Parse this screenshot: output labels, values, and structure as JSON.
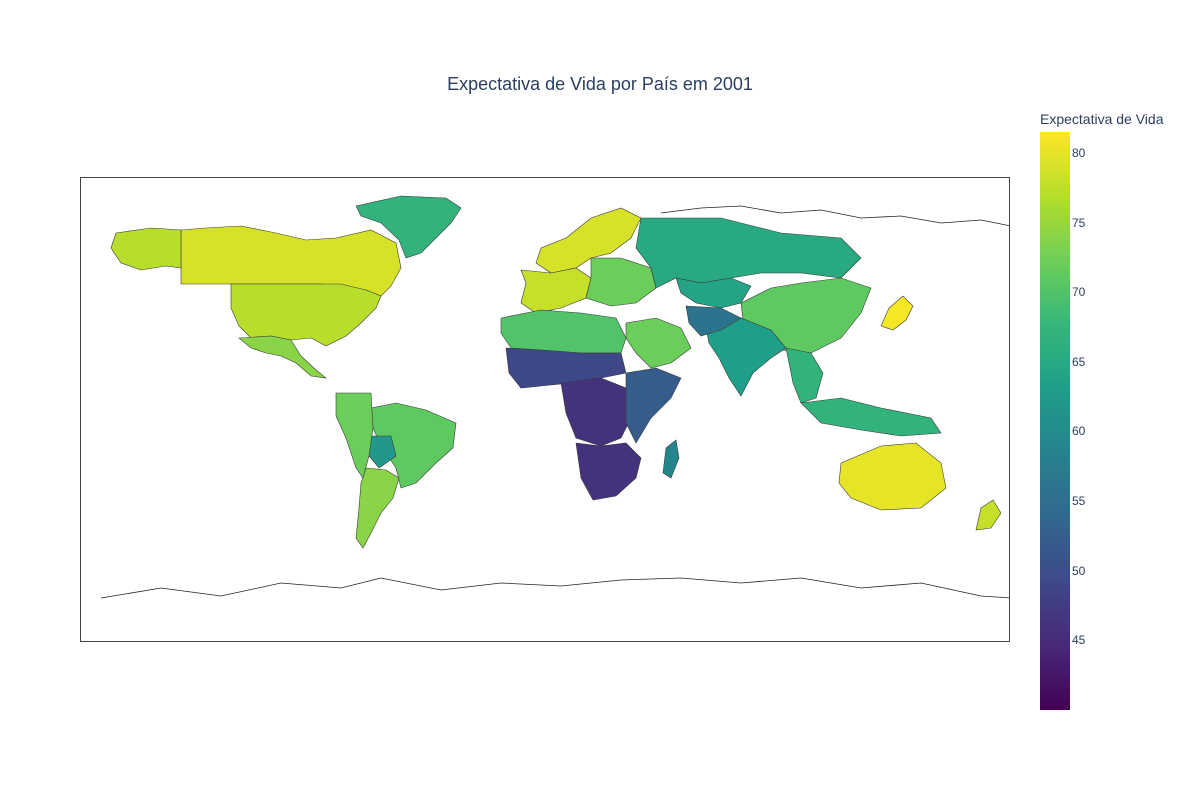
{
  "title": "Expectativa de Vida por País em 2001",
  "colorbar": {
    "title": "Expectativa de Vida",
    "ticks": [
      "80",
      "75",
      "70",
      "65",
      "60",
      "55",
      "50",
      "45"
    ],
    "tick_values": [
      80,
      75,
      70,
      65,
      60,
      55,
      50,
      45
    ],
    "min": 40,
    "max": 81.5,
    "colorscale": [
      "#440154",
      "#482878",
      "#3e4989",
      "#31688e",
      "#26828e",
      "#1f9e89",
      "#35b779",
      "#6ece58",
      "#b5de2b",
      "#fde725"
    ]
  },
  "chart_data": {
    "type": "choropleth",
    "title": "Expectativa de Vida por País em 2001",
    "colorbar_title": "Expectativa de Vida",
    "range": [
      40,
      81.5
    ],
    "regions": [
      {
        "name": "Canada",
        "value": 79
      },
      {
        "name": "United States",
        "value": 77
      },
      {
        "name": "Alaska",
        "value": 77
      },
      {
        "name": "Greenland",
        "value": 67
      },
      {
        "name": "Mexico",
        "value": 74
      },
      {
        "name": "Brazil",
        "value": 71
      },
      {
        "name": "Argentina",
        "value": 74
      },
      {
        "name": "Bolivia",
        "value": 62
      },
      {
        "name": "Andes",
        "value": 72
      },
      {
        "name": "Europe North",
        "value": 79
      },
      {
        "name": "Europe West",
        "value": 78
      },
      {
        "name": "Eastern Europe",
        "value": 72
      },
      {
        "name": "Russia",
        "value": 65
      },
      {
        "name": "Kazakhstan",
        "value": 64
      },
      {
        "name": "China",
        "value": 71
      },
      {
        "name": "Japan",
        "value": 81
      },
      {
        "name": "India",
        "value": 63
      },
      {
        "name": "Afghanistan",
        "value": 56
      },
      {
        "name": "Arabia",
        "value": 72
      },
      {
        "name": "North Africa",
        "value": 70
      },
      {
        "name": "Sahel",
        "value": 49
      },
      {
        "name": "Central Africa",
        "value": 46
      },
      {
        "name": "East Africa",
        "value": 52
      },
      {
        "name": "Southern Africa",
        "value": 46
      },
      {
        "name": "Madagascar",
        "value": 59
      },
      {
        "name": "Southeast Asia",
        "value": 67
      },
      {
        "name": "Indonesia",
        "value": 67
      },
      {
        "name": "Australia",
        "value": 80
      },
      {
        "name": "New Zealand",
        "value": 78
      }
    ]
  }
}
